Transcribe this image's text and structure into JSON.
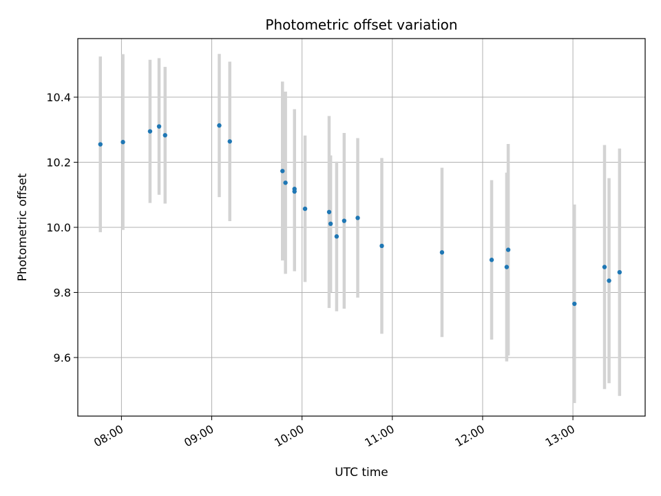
{
  "chart_data": {
    "type": "scatter",
    "title": "Photometric offset variation",
    "xlabel": "UTC time",
    "ylabel": "Photometric offset",
    "x_tick_labels": [
      "08:00",
      "09:00",
      "10:00",
      "11:00",
      "12:00",
      "13:00"
    ],
    "y_tick_labels": [
      "9.6",
      "9.8",
      "10.0",
      "10.2",
      "10.4"
    ],
    "y_ticks": [
      9.6,
      9.8,
      10.0,
      10.2,
      10.4
    ],
    "xlim": [
      "07:31",
      "13:48"
    ],
    "ylim": [
      9.42,
      10.58
    ],
    "grid": true,
    "colors": {
      "point": "#1f77b4",
      "error_bar": "#d3d3d3",
      "grid": "#b0b0b0"
    },
    "series": [
      {
        "points": [
          {
            "t": "07:46",
            "y": 10.255,
            "err": 0.27
          },
          {
            "t": "08:01",
            "y": 10.262,
            "err": 0.27
          },
          {
            "t": "08:19",
            "y": 10.295,
            "err": 0.22
          },
          {
            "t": "08:25",
            "y": 10.31,
            "err": 0.21
          },
          {
            "t": "08:29",
            "y": 10.283,
            "err": 0.21
          },
          {
            "t": "09:05",
            "y": 10.313,
            "err": 0.22
          },
          {
            "t": "09:12",
            "y": 10.264,
            "err": 0.245
          },
          {
            "t": "09:47",
            "y": 10.173,
            "err": 0.275
          },
          {
            "t": "09:49",
            "y": 10.137,
            "err": 0.28
          },
          {
            "t": "09:55",
            "y": 10.118,
            "err": 0.245
          },
          {
            "t": "09:55",
            "y": 10.11,
            "err": 0.245
          },
          {
            "t": "10:02",
            "y": 10.057,
            "err": 0.225
          },
          {
            "t": "10:18",
            "y": 10.047,
            "err": 0.295
          },
          {
            "t": "10:19",
            "y": 10.011,
            "err": 0.21
          },
          {
            "t": "10:23",
            "y": 9.972,
            "err": 0.23
          },
          {
            "t": "10:28",
            "y": 10.02,
            "err": 0.27
          },
          {
            "t": "10:37",
            "y": 10.029,
            "err": 0.245
          },
          {
            "t": "10:53",
            "y": 9.943,
            "err": 0.27
          },
          {
            "t": "11:33",
            "y": 9.923,
            "err": 0.26
          },
          {
            "t": "12:06",
            "y": 9.9,
            "err": 0.245
          },
          {
            "t": "12:16",
            "y": 9.878,
            "err": 0.29
          },
          {
            "t": "12:17",
            "y": 9.931,
            "err": 0.325
          },
          {
            "t": "13:01",
            "y": 9.765,
            "err": 0.305
          },
          {
            "t": "13:21",
            "y": 9.878,
            "err": 0.375
          },
          {
            "t": "13:24",
            "y": 9.836,
            "err": 0.315
          },
          {
            "t": "13:31",
            "y": 9.862,
            "err": 0.38
          }
        ]
      }
    ]
  }
}
